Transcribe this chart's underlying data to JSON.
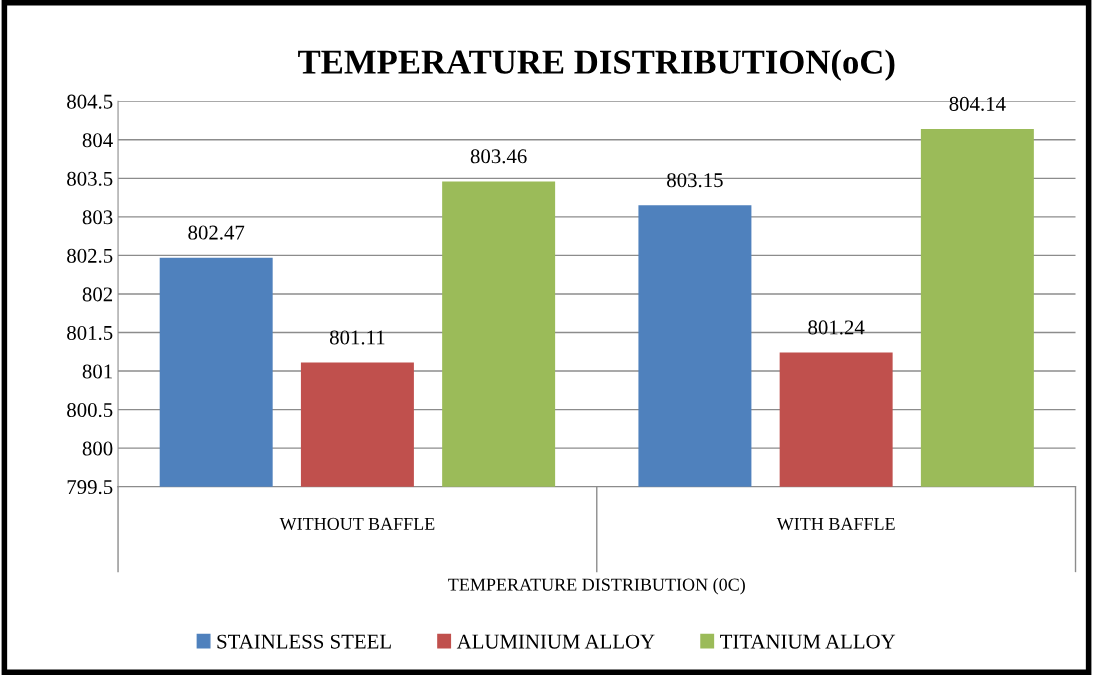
{
  "chart_data": {
    "type": "bar",
    "title": "TEMPERATURE DISTRIBUTION(oC)",
    "xlabel": "TEMPERATURE DISTRIBUTION (0C)",
    "categories": [
      "WITHOUT BAFFLE",
      "WITH BAFFLE"
    ],
    "series": [
      {
        "name": "STAINLESS STEEL",
        "color": "#4f81bd",
        "values": [
          802.47,
          803.15
        ]
      },
      {
        "name": "ALUMINIUM ALLOY",
        "color": "#c0504d",
        "values": [
          801.11,
          801.24
        ]
      },
      {
        "name": "TITANIUM ALLOY",
        "color": "#9bbb59",
        "values": [
          803.46,
          804.14
        ]
      }
    ],
    "ylim": [
      799.5,
      804.5
    ],
    "yticks": [
      799.5,
      800,
      800.5,
      801,
      801.5,
      802,
      802.5,
      803,
      803.5,
      804,
      804.5
    ],
    "grid": "y",
    "legend": "bottom",
    "data_labels": true
  }
}
